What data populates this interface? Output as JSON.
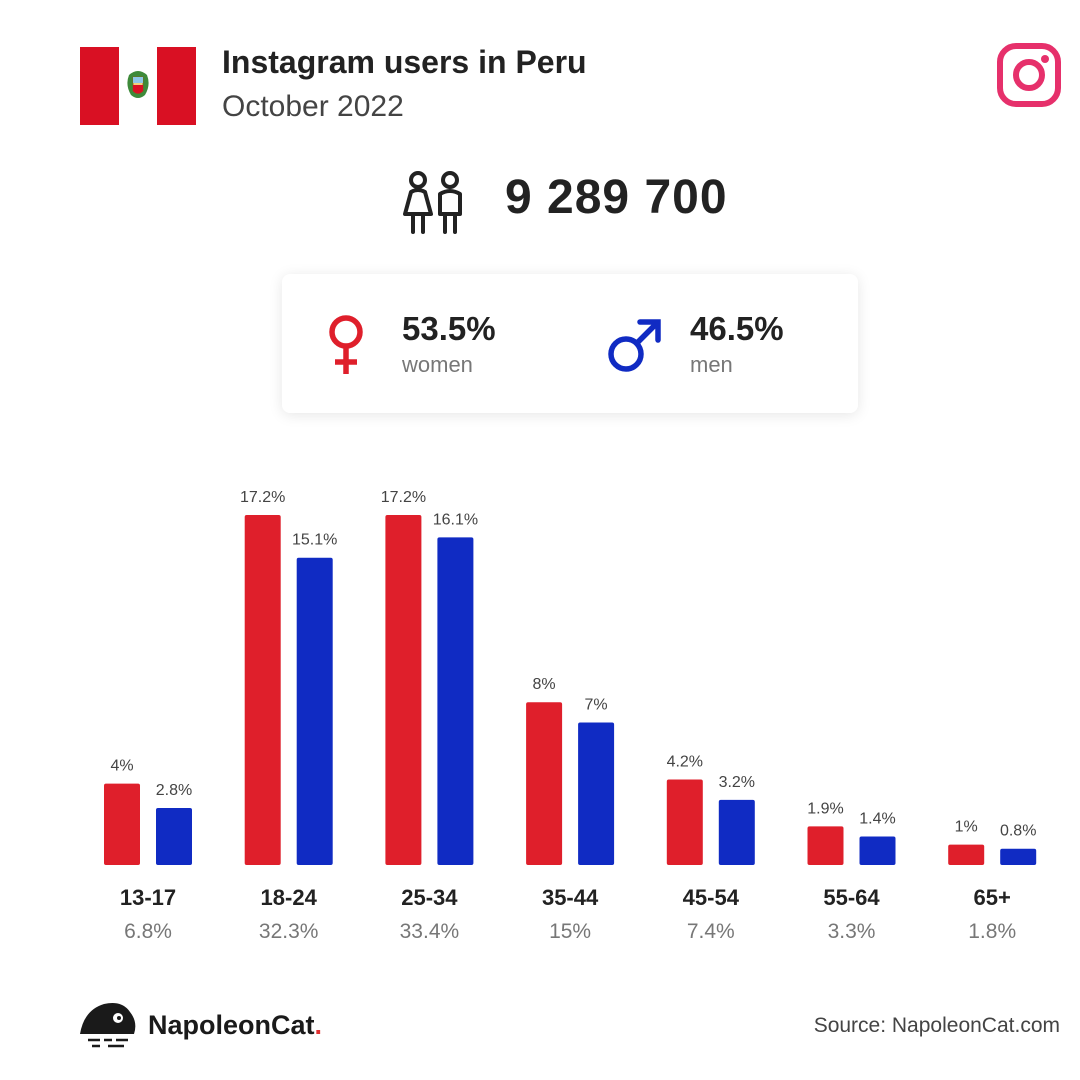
{
  "header": {
    "title": "Instagram users in Peru",
    "subtitle": "October 2022"
  },
  "total_users": "9 289 700",
  "gender": {
    "women_pct": "53.5%",
    "women_label": "women",
    "men_pct": "46.5%",
    "men_label": "men"
  },
  "colors": {
    "women": "#df1f2b",
    "men": "#102bc3",
    "instagram": "#e6306b",
    "peru_red": "#d91023"
  },
  "chart_data": {
    "type": "bar",
    "categories": [
      "13-17",
      "18-24",
      "25-34",
      "35-44",
      "45-54",
      "55-64",
      "65+"
    ],
    "category_totals": [
      "6.8%",
      "32.3%",
      "33.4%",
      "15%",
      "7.4%",
      "3.3%",
      "1.8%"
    ],
    "series": [
      {
        "name": "women",
        "values": [
          4,
          17.2,
          17.2,
          8,
          4.2,
          1.9,
          1
        ],
        "labels": [
          "4%",
          "17.2%",
          "17.2%",
          "8%",
          "4.2%",
          "1.9%",
          "1%"
        ]
      },
      {
        "name": "men",
        "values": [
          2.8,
          15.1,
          16.1,
          7,
          3.2,
          1.4,
          0.8
        ],
        "labels": [
          "2.8%",
          "15.1%",
          "16.1%",
          "7%",
          "3.2%",
          "1.4%",
          "0.8%"
        ]
      }
    ],
    "ylim": [
      0,
      17.2
    ],
    "grid": false
  },
  "footer": {
    "brand": "NapoleonCat",
    "brand_dot": ".",
    "source": "Source: NapoleonCat.com"
  },
  "icons": {
    "flag": "peru-flag-icon",
    "instagram": "instagram-icon",
    "users": "users-icon",
    "female": "female-symbol-icon",
    "male": "male-symbol-icon",
    "logo": "napoleoncat-logo-icon"
  }
}
